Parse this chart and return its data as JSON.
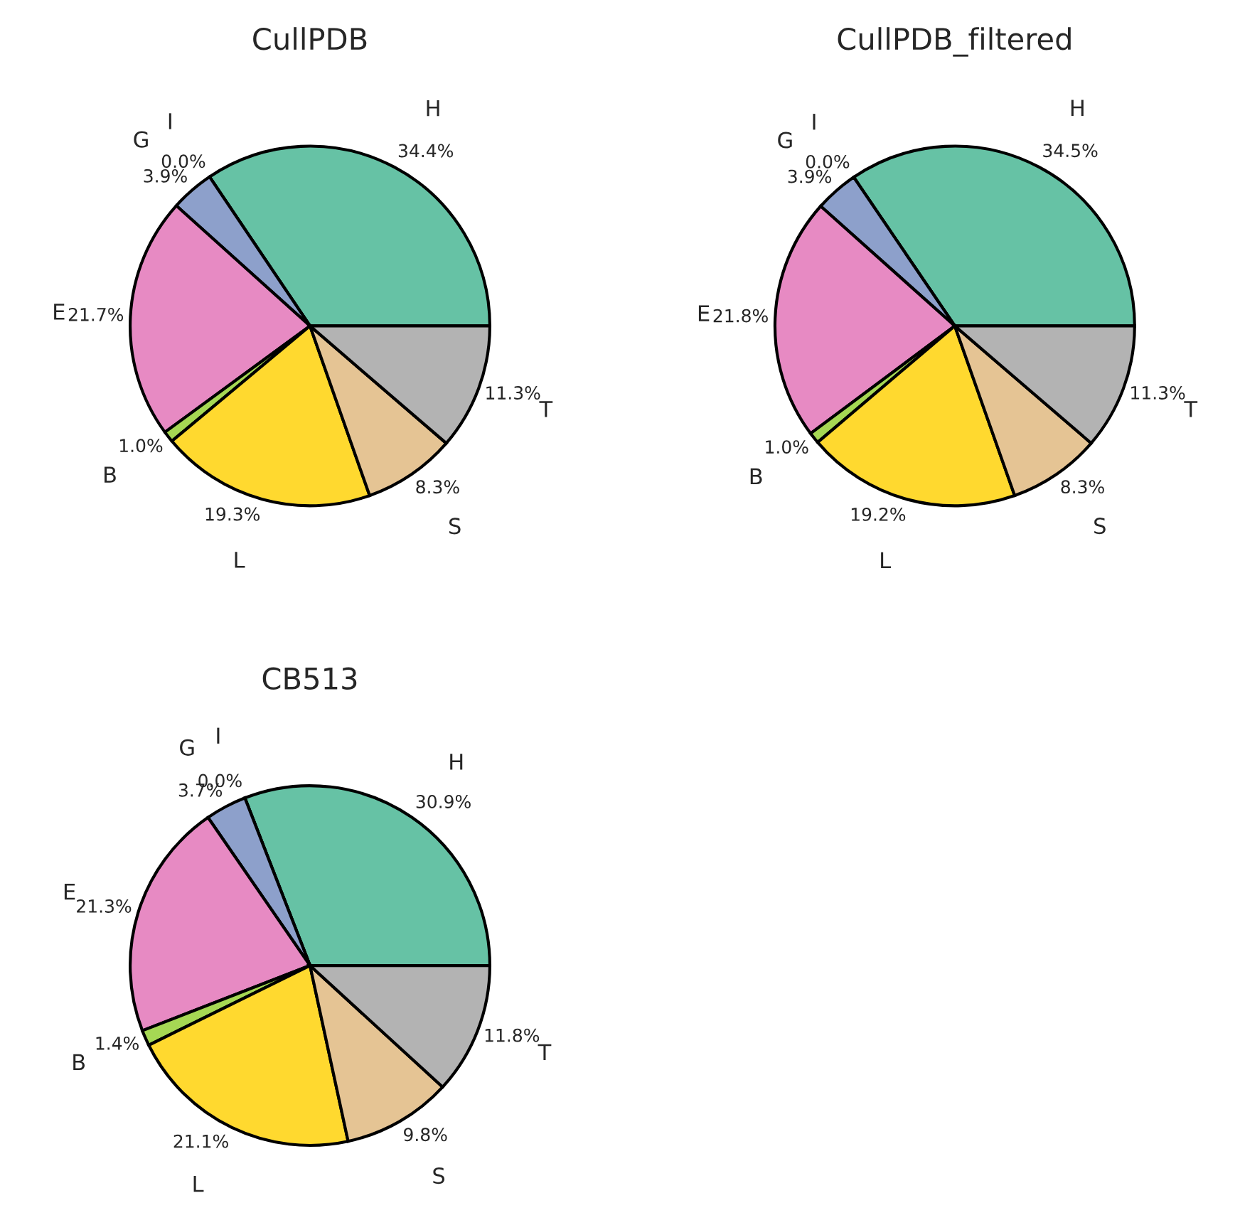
{
  "chart_data": [
    {
      "type": "pie",
      "title": "CullPDB",
      "categories": [
        "H",
        "I",
        "G",
        "E",
        "B",
        "L",
        "S",
        "T"
      ],
      "values": [
        34.4,
        0.0,
        3.9,
        21.7,
        1.0,
        19.3,
        8.3,
        11.3
      ],
      "value_labels": [
        "34.4%",
        "0.0%",
        "3.9%",
        "21.7%",
        "1.0%",
        "19.3%",
        "8.3%",
        "11.3%"
      ],
      "colors": [
        "#66c2a5",
        "#fc8d62",
        "#8da0cb",
        "#e78ac3",
        "#a6d854",
        "#ffd92f",
        "#e5c494",
        "#b3b3b3"
      ]
    },
    {
      "type": "pie",
      "title": "CullPDB_filtered",
      "categories": [
        "H",
        "I",
        "G",
        "E",
        "B",
        "L",
        "S",
        "T"
      ],
      "values": [
        34.5,
        0.0,
        3.9,
        21.8,
        1.0,
        19.2,
        8.3,
        11.3
      ],
      "value_labels": [
        "34.5%",
        "0.0%",
        "3.9%",
        "21.8%",
        "1.0%",
        "19.2%",
        "8.3%",
        "11.3%"
      ],
      "colors": [
        "#66c2a5",
        "#fc8d62",
        "#8da0cb",
        "#e78ac3",
        "#a6d854",
        "#ffd92f",
        "#e5c494",
        "#b3b3b3"
      ]
    },
    {
      "type": "pie",
      "title": "CB513",
      "categories": [
        "H",
        "I",
        "G",
        "E",
        "B",
        "L",
        "S",
        "T"
      ],
      "values": [
        30.9,
        0.0,
        3.7,
        21.3,
        1.4,
        21.1,
        9.8,
        11.8
      ],
      "value_labels": [
        "30.9%",
        "0.0%",
        "3.7%",
        "21.3%",
        "1.4%",
        "21.1%",
        "9.8%",
        "11.8%"
      ],
      "colors": [
        "#66c2a5",
        "#fc8d62",
        "#8da0cb",
        "#e78ac3",
        "#a6d854",
        "#ffd92f",
        "#e5c494",
        "#b3b3b3"
      ]
    }
  ]
}
